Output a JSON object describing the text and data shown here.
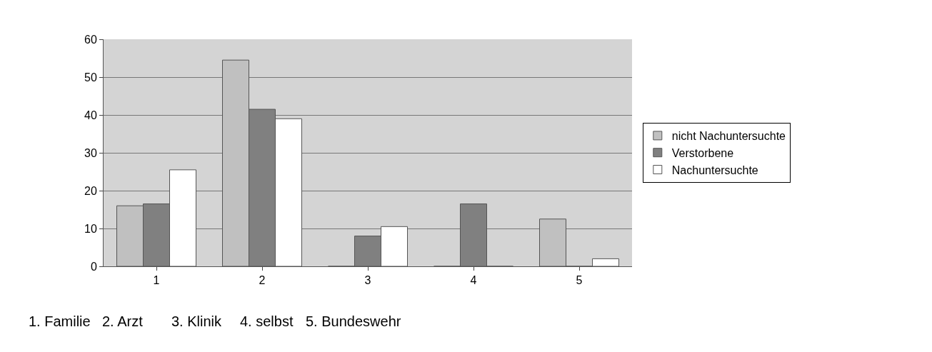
{
  "chart_data": {
    "type": "bar",
    "categories": [
      "1",
      "2",
      "3",
      "4",
      "5"
    ],
    "series": [
      {
        "name": "nicht Nachuntersuchte",
        "color": "#c0c0c0",
        "values": [
          16,
          54.5,
          0,
          0,
          12.5
        ]
      },
      {
        "name": "Verstorbene",
        "color": "#808080",
        "values": [
          16.5,
          41.5,
          8,
          16.5,
          0
        ]
      },
      {
        "name": "Nachuntersuchte",
        "color": "#ffffff",
        "values": [
          25.5,
          39,
          10.5,
          0,
          2
        ]
      }
    ],
    "ylim": [
      0,
      60
    ],
    "yticks": [
      0,
      10,
      20,
      30,
      40,
      50,
      60
    ],
    "grid": "y",
    "legend": "right",
    "annotations": [
      "1. Familie",
      "2. Arzt",
      "3. Klinik",
      "4. selbst",
      "5. Bundeswehr"
    ]
  }
}
